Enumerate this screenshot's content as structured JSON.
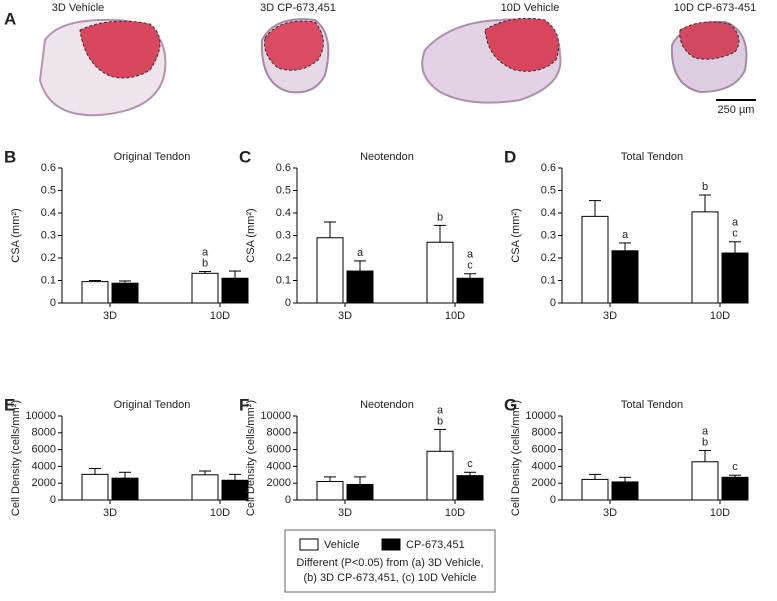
{
  "panel_a": {
    "letter": "A",
    "images": [
      {
        "label": "3D Vehicle"
      },
      {
        "label": "3D CP-673,451"
      },
      {
        "label": "10D Vehicle"
      },
      {
        "label": "10D CP-673-451"
      }
    ],
    "scale_bar": "250 µm"
  },
  "legend": {
    "items": [
      {
        "name": "Vehicle",
        "color": "#ffffff"
      },
      {
        "name": "CP-673,451",
        "color": "#000000"
      }
    ],
    "note": [
      "Different (P<0.05) from (a) 3D Vehicle,",
      "(b) 3D CP-673,451, (c) 10D Vehicle"
    ]
  },
  "chart_data": [
    {
      "type": "bar",
      "letter": "B",
      "title": "Original Tendon",
      "y_label": "CSA (mm²)",
      "categories": [
        "3D",
        "10D"
      ],
      "ylim": [
        0,
        0.6
      ],
      "yticks": [
        0,
        0.1,
        0.2,
        0.3,
        0.4,
        0.5,
        0.6
      ],
      "series": [
        {
          "color": "#ffffff",
          "values": [
            0.095,
            0.132
          ],
          "errors": [
            0.005,
            0.008
          ],
          "annotations": [
            null,
            [
              "a",
              "b"
            ]
          ]
        },
        {
          "color": "#000000",
          "values": [
            0.088,
            0.11
          ],
          "errors": [
            0.01,
            0.032
          ],
          "annotations": [
            null,
            null
          ]
        }
      ]
    },
    {
      "type": "bar",
      "letter": "C",
      "title": "Neotendon",
      "y_label": "CSA (mm²)",
      "categories": [
        "3D",
        "10D"
      ],
      "ylim": [
        0,
        0.6
      ],
      "yticks": [
        0,
        0.1,
        0.2,
        0.3,
        0.4,
        0.5,
        0.6
      ],
      "series": [
        {
          "color": "#ffffff",
          "values": [
            0.29,
            0.27
          ],
          "errors": [
            0.07,
            0.075
          ],
          "annotations": [
            null,
            [
              "b"
            ]
          ]
        },
        {
          "color": "#000000",
          "values": [
            0.142,
            0.11
          ],
          "errors": [
            0.045,
            0.02
          ],
          "annotations": [
            [
              "a"
            ],
            [
              "a",
              "c"
            ]
          ]
        }
      ]
    },
    {
      "type": "bar",
      "letter": "D",
      "title": "Total Tendon",
      "y_label": "CSA (mm²)",
      "categories": [
        "3D",
        "10D"
      ],
      "ylim": [
        0,
        0.6
      ],
      "yticks": [
        0,
        0.1,
        0.2,
        0.3,
        0.4,
        0.5,
        0.6
      ],
      "series": [
        {
          "color": "#ffffff",
          "values": [
            0.385,
            0.405
          ],
          "errors": [
            0.07,
            0.075
          ],
          "annotations": [
            null,
            [
              "b"
            ]
          ]
        },
        {
          "color": "#000000",
          "values": [
            0.232,
            0.222
          ],
          "errors": [
            0.035,
            0.05
          ],
          "annotations": [
            [
              "a"
            ],
            [
              "a",
              "c"
            ]
          ]
        }
      ]
    },
    {
      "type": "bar",
      "letter": "E",
      "title": "Original Tendon",
      "y_label": "Cell Density (cells/mm²)",
      "categories": [
        "3D",
        "10D"
      ],
      "ylim": [
        0,
        10000
      ],
      "yticks": [
        0,
        2000,
        4000,
        6000,
        8000,
        10000
      ],
      "series": [
        {
          "color": "#ffffff",
          "values": [
            3050,
            3000
          ],
          "errors": [
            700,
            450
          ],
          "annotations": [
            null,
            null
          ]
        },
        {
          "color": "#000000",
          "values": [
            2600,
            2350
          ],
          "errors": [
            700,
            700
          ],
          "annotations": [
            null,
            null
          ]
        }
      ]
    },
    {
      "type": "bar",
      "letter": "F",
      "title": "Neotendon",
      "y_label": "Cell Density (cells/mm²)",
      "categories": [
        "3D",
        "10D"
      ],
      "ylim": [
        0,
        10000
      ],
      "yticks": [
        0,
        2000,
        4000,
        6000,
        8000,
        10000
      ],
      "series": [
        {
          "color": "#ffffff",
          "values": [
            2200,
            5800
          ],
          "errors": [
            550,
            2600
          ],
          "annotations": [
            null,
            [
              "a",
              "b"
            ]
          ]
        },
        {
          "color": "#000000",
          "values": [
            1850,
            2900
          ],
          "errors": [
            900,
            400
          ],
          "annotations": [
            null,
            [
              "c"
            ]
          ]
        }
      ]
    },
    {
      "type": "bar",
      "letter": "G",
      "title": "Total Tendon",
      "y_label": "Cell Density (cells/mm²)",
      "categories": [
        "3D",
        "10D"
      ],
      "ylim": [
        0,
        10000
      ],
      "yticks": [
        0,
        2000,
        4000,
        6000,
        8000,
        10000
      ],
      "series": [
        {
          "color": "#ffffff",
          "values": [
            2450,
            4550
          ],
          "errors": [
            600,
            1350
          ],
          "annotations": [
            null,
            [
              "a",
              "b"
            ]
          ]
        },
        {
          "color": "#000000",
          "values": [
            2150,
            2700
          ],
          "errors": [
            550,
            250
          ],
          "annotations": [
            null,
            [
              "c"
            ]
          ]
        }
      ]
    }
  ]
}
